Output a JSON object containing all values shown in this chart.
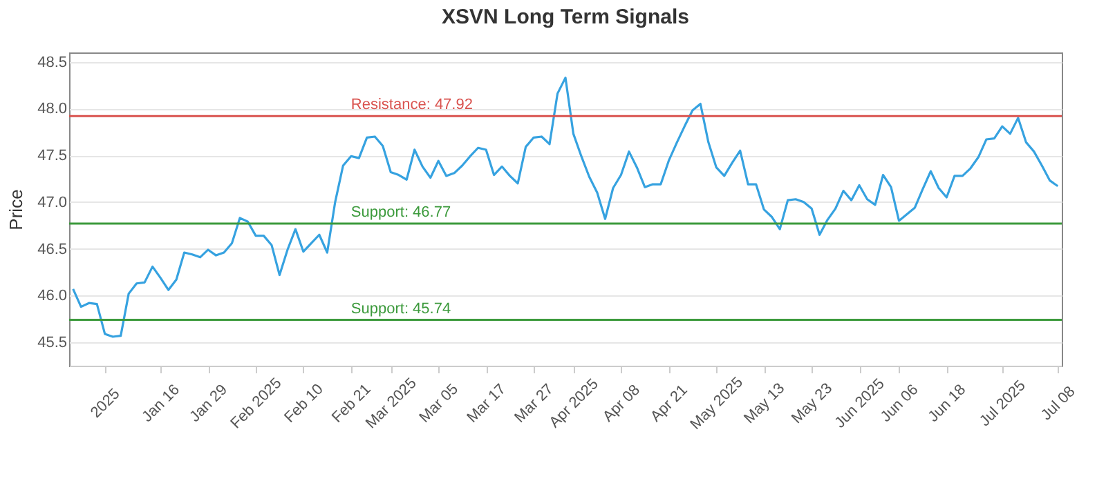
{
  "chart_data": {
    "type": "line",
    "title": "XSVN Long Term Signals",
    "ylabel": "Price",
    "categories": [
      null,
      null,
      null,
      null,
      "2025",
      null,
      null,
      null,
      null,
      null,
      null,
      "Jan 16",
      null,
      null,
      null,
      null,
      null,
      "Jan 29",
      null,
      null,
      null,
      null,
      null,
      "Feb 2025",
      null,
      null,
      null,
      null,
      null,
      "Feb 10",
      null,
      null,
      null,
      null,
      null,
      "Feb 21",
      null,
      null,
      null,
      null,
      "Mar 2025",
      null,
      null,
      null,
      null,
      null,
      "Mar 05",
      null,
      null,
      null,
      null,
      null,
      "Mar 17",
      null,
      null,
      null,
      null,
      null,
      "Mar 27",
      null,
      null,
      null,
      null,
      "Apr 2025",
      null,
      null,
      null,
      null,
      null,
      "Apr 08",
      null,
      null,
      null,
      null,
      null,
      "Apr 21",
      null,
      null,
      null,
      null,
      null,
      "May 2025",
      null,
      null,
      null,
      null,
      null,
      "May 13",
      null,
      null,
      null,
      null,
      null,
      "May 23",
      null,
      null,
      null,
      null,
      null,
      "Jun 2025",
      null,
      null,
      null,
      null,
      "Jun 06",
      null,
      null,
      null,
      null,
      null,
      "Jun 18",
      null,
      null,
      null,
      null,
      null,
      null,
      "Jul 2025",
      null,
      null,
      null,
      null,
      null,
      null,
      "Jul 08"
    ],
    "series": [
      {
        "color": "#36a2e0",
        "values": [
          46.07,
          45.88,
          45.92,
          45.91,
          45.59,
          45.56,
          45.57,
          46.02,
          46.13,
          46.14,
          46.31,
          46.19,
          46.06,
          46.17,
          46.46,
          46.44,
          46.41,
          46.49,
          46.43,
          46.46,
          46.56,
          46.83,
          46.79,
          46.64,
          46.64,
          46.54,
          46.22,
          46.49,
          46.71,
          46.47,
          46.56,
          46.65,
          46.46,
          47.0,
          47.39,
          47.49,
          47.47,
          47.69,
          47.7,
          47.6,
          47.32,
          47.29,
          47.24,
          47.56,
          47.38,
          47.26,
          47.44,
          47.28,
          47.31,
          47.39,
          47.49,
          47.58,
          47.56,
          47.29,
          47.38,
          47.28,
          47.2,
          47.59,
          47.69,
          47.7,
          47.62,
          48.16,
          48.33,
          47.73,
          47.49,
          47.27,
          47.1,
          46.82,
          47.15,
          47.29,
          47.54,
          47.37,
          47.16,
          47.19,
          47.19,
          47.44,
          47.63,
          47.81,
          47.98,
          48.05,
          47.64,
          47.37,
          47.28,
          47.42,
          47.55,
          47.19,
          47.19,
          46.92,
          46.84,
          46.71,
          47.02,
          47.03,
          47.0,
          46.93,
          46.65,
          46.81,
          46.93,
          47.12,
          47.02,
          47.18,
          47.03,
          46.97,
          47.29,
          47.16,
          46.8,
          46.87,
          46.94,
          47.14,
          47.33,
          47.15,
          47.05,
          47.28,
          47.28,
          47.36,
          47.48,
          47.67,
          47.68,
          47.81,
          47.73,
          47.9,
          47.64,
          47.54,
          47.39,
          47.23,
          47.17
        ]
      }
    ],
    "ylim": [
      45.25,
      48.6
    ],
    "yticks": [
      {
        "value": 45.5,
        "label": "45.5"
      },
      {
        "value": 46,
        "label": "46.0"
      },
      {
        "value": 46.5,
        "label": "46.5"
      },
      {
        "value": 47,
        "label": "47.0"
      },
      {
        "value": 47.5,
        "label": "47.5"
      },
      {
        "value": 48,
        "label": "48.0"
      },
      {
        "value": 48.5,
        "label": "48.5"
      }
    ],
    "grid": "y",
    "marker": "none",
    "line_style": "solid",
    "ref_lines": [
      {
        "axis": "y",
        "value": 47.92,
        "label": "Resistance: 47.92",
        "color": "#d9534f"
      },
      {
        "axis": "y",
        "value": 46.77,
        "label": "Support: 46.77",
        "color": "#3c9a3c"
      },
      {
        "axis": "y",
        "value": 45.74,
        "label": "Support: 45.74",
        "color": "#3c9a3c"
      }
    ]
  }
}
